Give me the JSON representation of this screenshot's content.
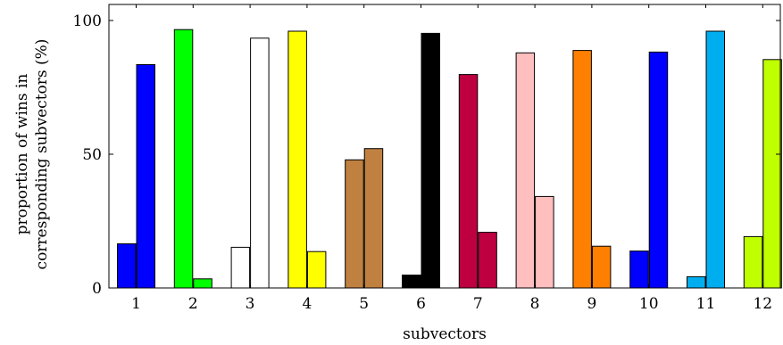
{
  "chart_data": {
    "type": "bar",
    "title": "",
    "xlabel": "subvectors",
    "ylabel_lines": [
      "proportion of wins in",
      "corresponding subvectors (%)"
    ],
    "ylim": [
      0,
      100
    ],
    "yticks": [
      0,
      50,
      100
    ],
    "grid": false,
    "categories": [
      "1",
      "2",
      "3",
      "4",
      "5",
      "6",
      "7",
      "8",
      "9",
      "10",
      "11",
      "12"
    ],
    "groups": [
      {
        "category": "1",
        "values": [
          16.5,
          83.5
        ],
        "colors": [
          "#0000ff",
          "#0000ff"
        ]
      },
      {
        "category": "2",
        "values": [
          96.6,
          3.4
        ],
        "colors": [
          "#00ff00",
          "#00ff00"
        ]
      },
      {
        "category": "3",
        "values": [
          15.2,
          93.4
        ],
        "colors": [
          "#ffffff",
          "#ffffff"
        ]
      },
      {
        "category": "4",
        "values": [
          96.0,
          13.6
        ],
        "colors": [
          "#ffff00",
          "#ffff00"
        ]
      },
      {
        "category": "5",
        "values": [
          47.9,
          52.1
        ],
        "colors": [
          "#bf8040",
          "#bf8040"
        ]
      },
      {
        "category": "6",
        "values": [
          4.8,
          95.2
        ],
        "colors": [
          "#000000",
          "#000000"
        ]
      },
      {
        "category": "7",
        "values": [
          79.8,
          20.8
        ],
        "colors": [
          "#bf0040",
          "#bf0040"
        ]
      },
      {
        "category": "8",
        "values": [
          87.9,
          34.2
        ],
        "colors": [
          "#ffbfbf",
          "#ffbfbf"
        ]
      },
      {
        "category": "9",
        "values": [
          88.8,
          15.6
        ],
        "colors": [
          "#ff8000",
          "#ff8000"
        ]
      },
      {
        "category": "10",
        "values": [
          13.8,
          88.2
        ],
        "colors": [
          "#0000ff",
          "#0000ff"
        ]
      },
      {
        "category": "11",
        "values": [
          4.2,
          96.0
        ],
        "colors": [
          "#00aeef",
          "#00aeef"
        ]
      },
      {
        "category": "12",
        "values": [
          19.2,
          85.4
        ],
        "colors": [
          "#bfff00",
          "#bfff00"
        ]
      }
    ]
  }
}
